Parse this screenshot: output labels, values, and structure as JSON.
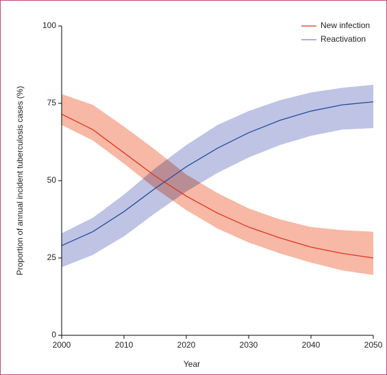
{
  "chart_data": {
    "type": "line",
    "x_label": "Year",
    "y_label": "Proportion of annual incident tuberculosis cases (%)",
    "x": [
      2000,
      2005,
      2010,
      2015,
      2020,
      2025,
      2030,
      2035,
      2040,
      2045,
      2050
    ],
    "series": [
      {
        "name": "New infection",
        "color": "#e0321e",
        "band_color": "#f4a088",
        "values": [
          71.5,
          66.5,
          59,
          51.5,
          45,
          39.5,
          35,
          31.5,
          28.5,
          26.5,
          25
        ],
        "lower": [
          68,
          63,
          55.5,
          47.5,
          40.5,
          34.5,
          30,
          26.5,
          23.5,
          21,
          19.5
        ],
        "upper": [
          78,
          74.5,
          67.5,
          60,
          52,
          46,
          41,
          37.5,
          35,
          34,
          33.5
        ]
      },
      {
        "name": "Reactivation",
        "color": "#234a9a",
        "legend_color": "#9b6fc9",
        "band_color": "#a9b0dc",
        "values": [
          29,
          33.5,
          40,
          47.5,
          54.5,
          60.5,
          65.5,
          69.5,
          72.5,
          74.5,
          75.5
        ],
        "lower": [
          22,
          26,
          32,
          39.5,
          46.5,
          52.5,
          57.5,
          61.5,
          64.5,
          66.5,
          67
        ],
        "upper": [
          33,
          38,
          45.5,
          54,
          61.5,
          68,
          72.5,
          76,
          78.5,
          80,
          81
        ]
      }
    ],
    "xlim": [
      2000,
      2050
    ],
    "xticks": [
      2000,
      2010,
      2020,
      2030,
      2040,
      2050
    ],
    "ylim": [
      0,
      100
    ],
    "yticks": [
      0,
      25,
      50,
      75,
      100
    ],
    "legend": "upper right"
  }
}
